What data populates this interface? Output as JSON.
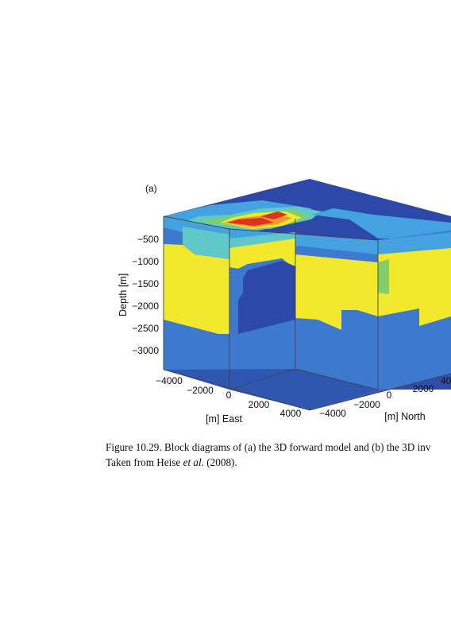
{
  "panel_label": "(a)",
  "axes": {
    "depth_label": "Depth [m]",
    "depth_ticks": [
      "−500",
      "−1000",
      "−1500",
      "−2000",
      "−2500",
      "−3000"
    ],
    "east_label": "[m] East",
    "east_ticks": [
      "−4000",
      "−2000",
      "0",
      "2000",
      "4000"
    ],
    "north_label": "[m] North",
    "north_ticks": [
      "−4000",
      "−2000",
      "0",
      "2000",
      "40"
    ]
  },
  "colors": {
    "deep_blue": "#2f57b0",
    "dark_block": "#2c48a8",
    "mid_blue": "#3d79cf",
    "light_blue": "#45a2e0",
    "cyan": "#60c8c8",
    "green": "#7fd06a",
    "yellow": "#f2e82c",
    "orange": "#f29a2c",
    "red": "#e2301f"
  },
  "caption": {
    "line1": "Figure 10.29.  Block diagrams of (a) the 3D forward model and (b) the 3D inv",
    "line2_start": "Taken from Heise ",
    "line2_italic": "et al",
    "line2_end": ". (2008)."
  }
}
